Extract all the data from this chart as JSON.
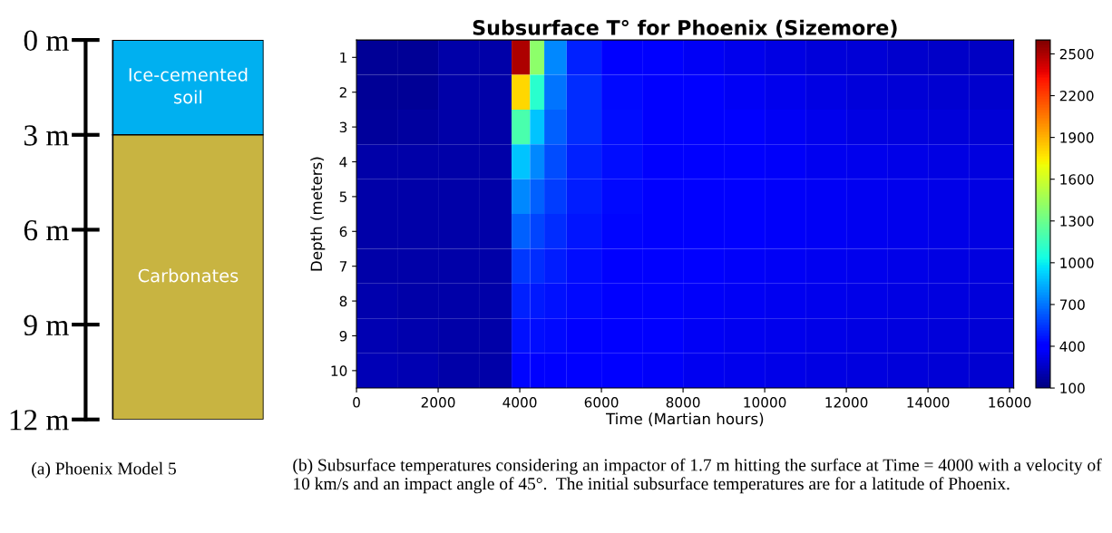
{
  "chart_data": [
    {
      "type": "bar",
      "stacked": true,
      "categories": [
        null
      ],
      "ylim": [
        12,
        0
      ],
      "yticks": [
        {
          "value": 0,
          "label": "0 m"
        },
        {
          "value": 3,
          "label": "3 m"
        },
        {
          "value": 6,
          "label": "6 m"
        },
        {
          "value": 9,
          "label": "9 m"
        },
        {
          "value": 12,
          "label": "12 m"
        }
      ],
      "series": [
        {
          "name": "Ice-cemented soil",
          "color": "#00b0f0",
          "values": [
            3
          ]
        },
        {
          "name": "Carbonates",
          "color": "#c8b441",
          "values": [
            9
          ]
        }
      ],
      "annotations": [
        "(a) Phoenix Model 5"
      ]
    },
    {
      "type": "heatmap",
      "title": "Subsurface T° for Phoenix (Sizemore)",
      "xlabel": "Time (Martian hours)",
      "ylabel": "Depth (meters)",
      "x": [
        500,
        1500,
        2500,
        3500,
        4100,
        4400,
        4800,
        5500,
        6500,
        7500,
        8500,
        9500,
        10500,
        11500,
        12500,
        13500,
        14500,
        15500
      ],
      "xlim": [
        0,
        16100
      ],
      "xticks": [
        0,
        2000,
        4000,
        6000,
        8000,
        10000,
        12000,
        14000,
        16000
      ],
      "y_categories": [
        "1",
        "2",
        "3",
        "4",
        "5",
        "6",
        "7",
        "8",
        "9",
        "10"
      ],
      "clim": [
        100,
        2600
      ],
      "cticks": [
        100,
        400,
        700,
        1000,
        1300,
        1600,
        1900,
        2200,
        2500
      ],
      "cells": [
        [
          150,
          150,
          190,
          190,
          2500,
          1400,
          750,
          500,
          420,
          390,
          360,
          340,
          320,
          300,
          290,
          270,
          260,
          250
        ],
        [
          150,
          150,
          190,
          190,
          1800,
          1100,
          700,
          520,
          440,
          410,
          380,
          360,
          340,
          320,
          300,
          290,
          280,
          270
        ],
        [
          160,
          170,
          190,
          190,
          1200,
          900,
          650,
          520,
          450,
          420,
          400,
          380,
          360,
          340,
          320,
          310,
          300,
          290
        ],
        [
          190,
          190,
          190,
          190,
          900,
          750,
          600,
          500,
          450,
          420,
          400,
          390,
          370,
          350,
          340,
          330,
          320,
          310
        ],
        [
          190,
          190,
          190,
          190,
          750,
          650,
          560,
          490,
          440,
          420,
          400,
          390,
          370,
          360,
          350,
          340,
          330,
          320
        ],
        [
          190,
          190,
          190,
          190,
          650,
          580,
          520,
          470,
          430,
          410,
          390,
          380,
          370,
          360,
          350,
          340,
          330,
          320
        ],
        [
          190,
          190,
          190,
          190,
          550,
          520,
          490,
          450,
          420,
          400,
          380,
          370,
          360,
          350,
          340,
          330,
          320,
          310
        ],
        [
          200,
          190,
          190,
          190,
          500,
          480,
          460,
          440,
          410,
          390,
          370,
          360,
          350,
          340,
          330,
          320,
          310,
          300
        ],
        [
          210,
          200,
          190,
          190,
          460,
          450,
          440,
          420,
          400,
          380,
          360,
          350,
          340,
          330,
          320,
          310,
          300,
          290
        ],
        [
          220,
          210,
          190,
          190,
          430,
          420,
          420,
          410,
          390,
          370,
          350,
          340,
          330,
          320,
          310,
          300,
          290,
          280
        ]
      ],
      "annotations": [
        "(b) Subsurface temperatures considering an impactor of 1.7 m hitting the surface at Time = 4000 with a velocity of 10 km/s and an impact angle of 45°.  The initial subsurface temperatures are for a latitude of Phoenix."
      ]
    }
  ]
}
